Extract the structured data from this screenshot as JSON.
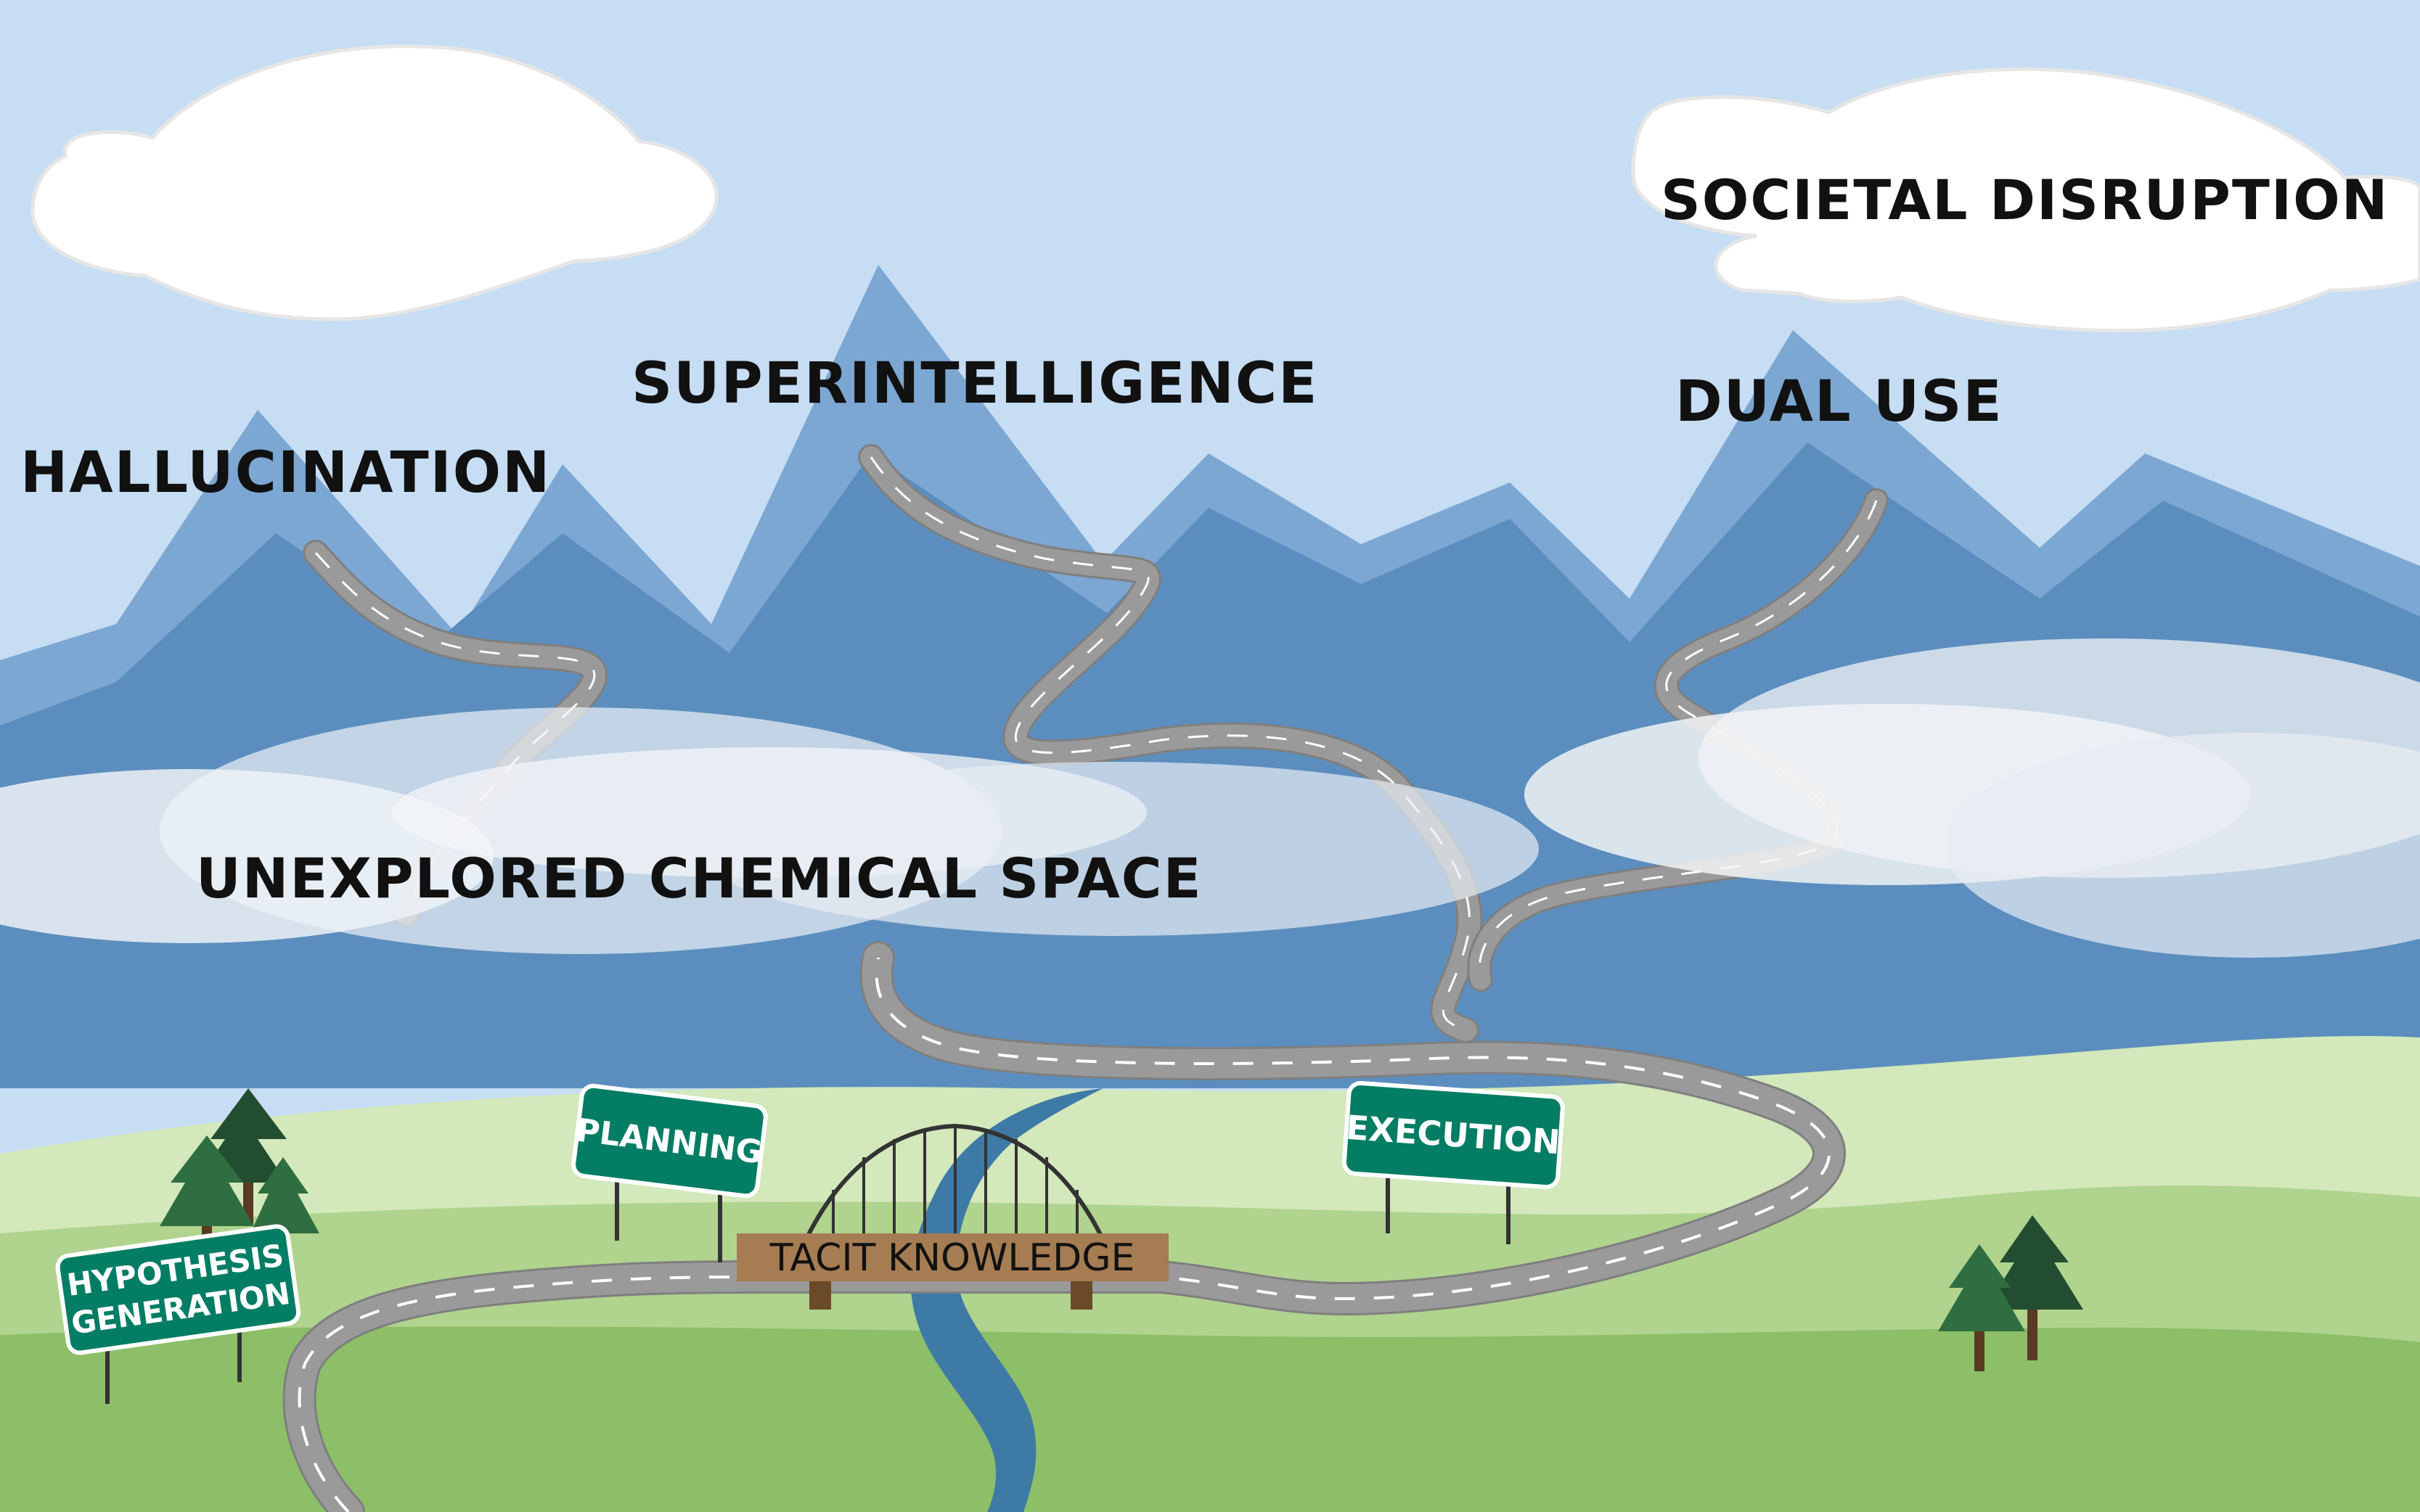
{
  "labels": {
    "hallucination": "HALLUCINATION",
    "superintelligence": "SUPERINTELLIGENCE",
    "dual_use": "DUAL USE",
    "societal_disruption": "SOCIETAL DISRUPTION",
    "unexplored": "UNEXPLORED CHEMICAL SPACE"
  },
  "signs": {
    "hypothesis_line1": "HYPOTHESIS",
    "hypothesis_line2": "GENERATION",
    "planning": "PLANNING",
    "execution": "EXECUTION"
  },
  "bridge": {
    "label": "TACIT KNOWLEDGE"
  },
  "colors": {
    "sky": "#c6ddf3",
    "mountain_back": "#7ba7d2",
    "mountain_front": "#5b8ebe",
    "hill_light": "#d3e8bb",
    "hill_mid": "#b0d38e",
    "hill_dark": "#8cbf68",
    "road": "#9a9a9a",
    "river": "#3e7aa6",
    "sign_green": "#037d64",
    "bridge_wood": "#a67c52",
    "tree_dark": "#224d30",
    "tree_light": "#2f6e40"
  }
}
